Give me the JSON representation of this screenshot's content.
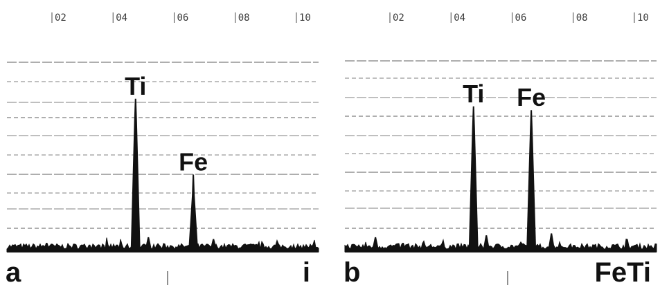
{
  "chart_data": [
    {
      "type": "bar",
      "panel_label": "a",
      "corner_label": "i",
      "x_tick_labels": [
        "02",
        "04",
        "06",
        "08",
        "10"
      ],
      "x_ticks": [
        2,
        4,
        6,
        8,
        10
      ],
      "xlim": [
        0.3,
        10.5
      ],
      "ylim": [
        0,
        100
      ],
      "grid": true,
      "peaks": [
        {
          "label": "Ti",
          "x": 4.51,
          "value": 80
        },
        {
          "label": "Fe",
          "x": 6.4,
          "value": 40
        }
      ],
      "minor_peaks": [
        {
          "x": 4.93,
          "value": 7
        },
        {
          "x": 7.06,
          "value": 6
        },
        {
          "x": 1.6,
          "value": 4
        },
        {
          "x": 3.0,
          "value": 3
        }
      ]
    },
    {
      "type": "bar",
      "panel_label": "b",
      "corner_label": "FeTi",
      "x_tick_labels": [
        "02",
        "04",
        "06",
        "08",
        "10"
      ],
      "x_ticks": [
        2,
        4,
        6,
        8,
        10
      ],
      "xlim": [
        0.3,
        10.5
      ],
      "ylim": [
        0,
        100
      ],
      "grid": true,
      "peaks": [
        {
          "label": "Ti",
          "x": 4.51,
          "value": 76
        },
        {
          "label": "Fe",
          "x": 6.4,
          "value": 74
        }
      ],
      "minor_peaks": [
        {
          "x": 4.93,
          "value": 8
        },
        {
          "x": 7.06,
          "value": 9
        },
        {
          "x": 1.3,
          "value": 7
        },
        {
          "x": 2.2,
          "value": 4
        }
      ]
    }
  ]
}
